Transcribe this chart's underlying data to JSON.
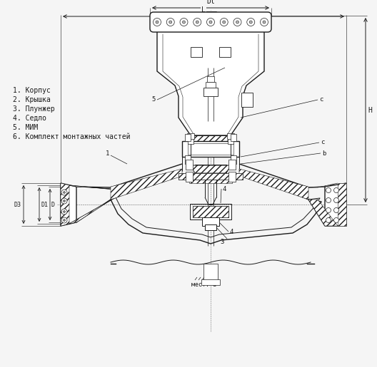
{
  "bg_color": "#f5f5f5",
  "line_color": "#1a1a1a",
  "legend_items": [
    "1. Корпус",
    "2. Крышка",
    "3. Плунжер",
    "4. Седло",
    "5. МИМ",
    "6. Комплект монтажных частей"
  ],
  "font_size_legend": 7,
  "font_size_dim": 7,
  "lw": 0.7,
  "lw_thick": 1.0,
  "lw_thin": 0.4
}
